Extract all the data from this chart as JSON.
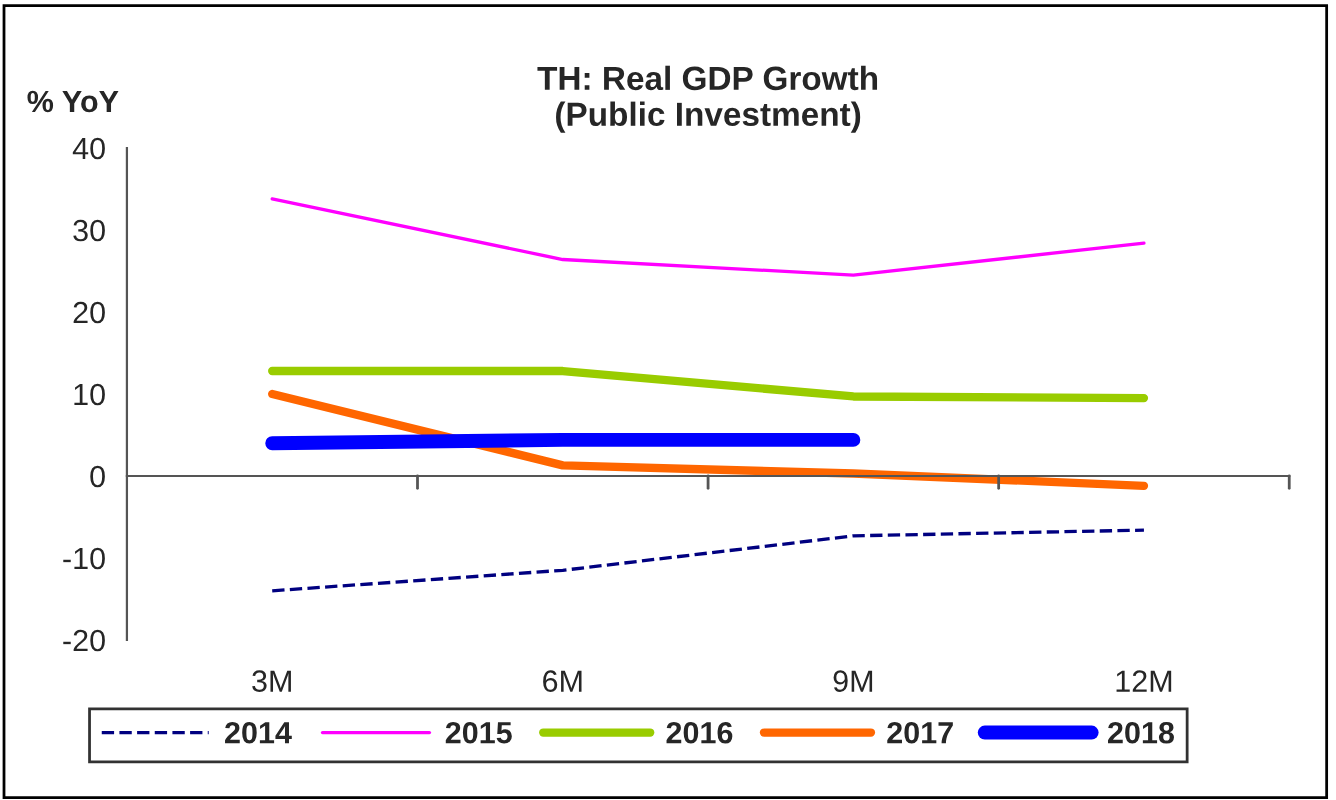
{
  "chart_data": {
    "type": "line",
    "title": "TH: Real GDP Growth\n(Public Investment)",
    "ylabel": "% YoY",
    "categories": [
      "3M",
      "6M",
      "9M",
      "12M"
    ],
    "series": [
      {
        "name": "2014",
        "color": "#000080",
        "line_style": "dashed",
        "values": [
          -14,
          -11.5,
          -7.3,
          -6.6
        ]
      },
      {
        "name": "2015",
        "color": "#ff00ff",
        "values": [
          33.8,
          26.4,
          24.5,
          28.4
        ]
      },
      {
        "name": "2016",
        "color": "#99cc00",
        "values": [
          12.8,
          12.8,
          9.7,
          9.5
        ]
      },
      {
        "name": "2017",
        "color": "#ff6600",
        "values": [
          10,
          1.3,
          0.3,
          -1.2
        ]
      },
      {
        "name": "2018",
        "color": "#0000ff",
        "values": [
          4,
          4.4,
          4.4,
          null
        ]
      }
    ],
    "ylim": [
      -20,
      40
    ],
    "yticks": [
      -20,
      -10,
      0,
      10,
      20,
      30,
      40
    ],
    "legend": "bottom"
  }
}
